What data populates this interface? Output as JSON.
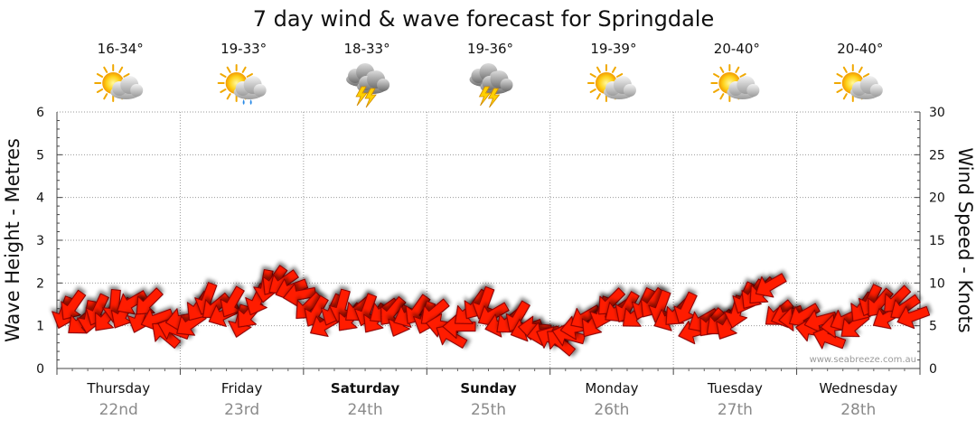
{
  "chart_data": {
    "type": "line",
    "title": "7 day wind & wave forecast for Springdale",
    "ylabel_left": "Wave Height - Metres",
    "ylabel_right": "Wind Speed - Knots",
    "y_left_ticks": [
      "0",
      "1",
      "2",
      "3",
      "4",
      "5",
      "6"
    ],
    "y_right_ticks": [
      "0",
      "5",
      "10",
      "15",
      "20",
      "25",
      "30"
    ],
    "ylim_left": [
      0,
      6
    ],
    "ylim_right": [
      0,
      30
    ],
    "days": [
      {
        "day": "Thursday",
        "date": "22nd",
        "temp": "16-34°",
        "icon": "sun-cloud-icon",
        "bold": false
      },
      {
        "day": "Friday",
        "date": "23rd",
        "temp": "19-33°",
        "icon": "sun-cloud-rain-icon",
        "bold": false
      },
      {
        "day": "Saturday",
        "date": "24th",
        "temp": "18-33°",
        "icon": "storm-icon",
        "bold": true
      },
      {
        "day": "Sunday",
        "date": "25th",
        "temp": "19-36°",
        "icon": "storm-icon",
        "bold": true
      },
      {
        "day": "Monday",
        "date": "26th",
        "temp": "19-39°",
        "icon": "sun-cloud-icon",
        "bold": false
      },
      {
        "day": "Tuesday",
        "date": "27th",
        "temp": "20-40°",
        "icon": "sun-cloud-icon",
        "bold": false
      },
      {
        "day": "Wednesday",
        "date": "28th",
        "temp": "20-40°",
        "icon": "sun-cloud-icon",
        "bold": false
      }
    ],
    "wind_series": {
      "name": "Wind Speed",
      "units": "knots",
      "color": "#ff1a00",
      "values": [
        6.5,
        7.3,
        5.4,
        6.0,
        6.8,
        5.9,
        7.3,
        6.4,
        7.7,
        6.0,
        7.7,
        5.8,
        4.0,
        4.6,
        5.7,
        5.2,
        7.2,
        8.1,
        7.2,
        6.3,
        7.7,
        5.5,
        6.3,
        8.0,
        9.6,
        10.2,
        10.0,
        9.3,
        8.6,
        7.2,
        6.6,
        5.1,
        6.8,
        7.3,
        5.9,
        6.9,
        6.8,
        5.8,
        6.7,
        6.6,
        5.5,
        6.2,
        6.8,
        5.9,
        6.5,
        5.0,
        3.8,
        4.9,
        6.5,
        7.4,
        7.6,
        6.3,
        5.1,
        5.5,
        6.0,
        4.6,
        4.7,
        4.1,
        3.5,
        3.1,
        3.9,
        4.8,
        6.0,
        5.3,
        6.5,
        7.7,
        6.8,
        7.1,
        6.2,
        7.5,
        7.6,
        7.2,
        5.8,
        6.5,
        7.0,
        4.3,
        5.6,
        5.3,
        5.3,
        5.1,
        6.6,
        8.2,
        8.6,
        9.0,
        9.7,
        6.4,
        6.2,
        5.8,
        6.2,
        4.5,
        5.6,
        3.5,
        5.0,
        5.7,
        5.0,
        7.1,
        7.9,
        7.6,
        6.0,
        8.0,
        7.1,
        6.1
      ]
    },
    "wind_direction_deg": [
      200,
      215,
      230,
      190,
      205,
      220,
      185,
      210,
      240,
      200,
      225,
      250,
      310,
      290,
      260,
      235,
      215,
      200,
      230,
      245,
      210,
      195,
      220,
      205,
      190,
      215,
      235,
      250,
      260,
      225,
      210,
      240,
      205,
      195,
      220,
      230,
      200,
      215,
      235,
      220,
      205,
      245,
      215,
      200,
      230,
      280,
      300,
      270,
      230,
      215,
      200,
      240,
      255,
      230,
      210,
      250,
      275,
      260,
      295,
      310,
      285,
      260,
      240,
      215,
      200,
      225,
      235,
      210,
      230,
      205,
      215,
      200,
      245,
      225,
      205,
      255,
      240,
      220,
      230,
      210,
      195,
      205,
      215,
      225,
      240,
      230,
      250,
      265,
      240,
      280,
      255,
      290,
      265,
      245,
      230,
      215,
      205,
      220,
      240,
      225,
      235,
      250
    ],
    "watermark": "www.seabreeze.com.au",
    "grid": true
  }
}
